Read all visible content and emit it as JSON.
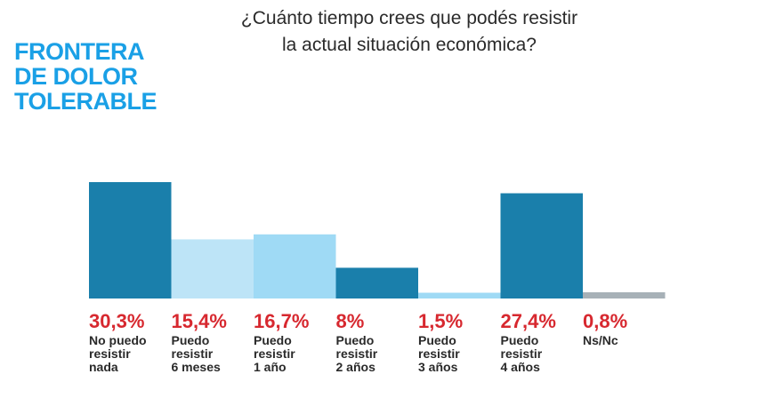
{
  "brand": [
    "FRONTERA",
    "DE DOLOR",
    "TOLERABLE"
  ],
  "chart_data": {
    "type": "bar",
    "title": "¿Cuánto tiempo crees que podés resistir la actual situación económica?",
    "title_lines": [
      "¿Cuánto tiempo crees que podés resistir",
      "la actual situación económica?"
    ],
    "value_labels": [
      "30,3%",
      "15,4%",
      "16,7%",
      "8%",
      "1,5%",
      "27,4%",
      "0,8%"
    ],
    "values": [
      30.3,
      15.4,
      16.7,
      8,
      1.5,
      27.4,
      0.8
    ],
    "categories": [
      [
        "No puedo",
        "resistir",
        "nada"
      ],
      [
        "Puedo",
        "resistir",
        "6 meses"
      ],
      [
        "Puedo",
        "resistir",
        "1 año"
      ],
      [
        "Puedo",
        "resistir",
        "2 años"
      ],
      [
        "Puedo",
        "resistir",
        "3 años"
      ],
      [
        "Puedo",
        "resistir",
        "4 años"
      ],
      [
        "Ns/Nc"
      ]
    ],
    "colors": [
      "#1a7fab",
      "#bde4f7",
      "#9fdaf5",
      "#1a7fab",
      "#9fdaf5",
      "#1a7fab",
      "#a7b1b7"
    ],
    "baseline_color": "#a7b1b7",
    "value_label_color": "#d7282f",
    "ylim": [
      0,
      30.3
    ],
    "grid": false,
    "legend": "none"
  }
}
